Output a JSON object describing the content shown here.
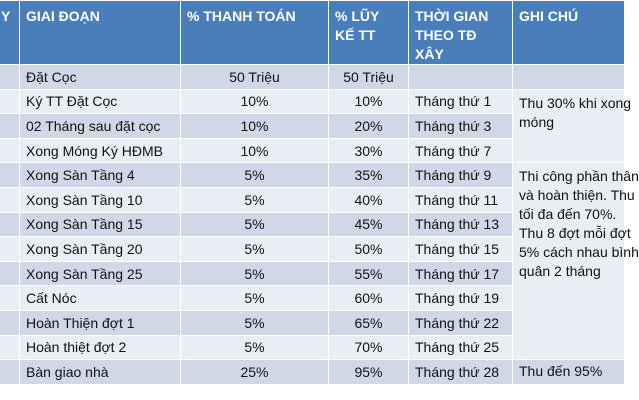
{
  "table": {
    "headers": [
      {
        "text": "Y",
        "name": "header-col-first"
      },
      {
        "text": "GIAI ĐOẠN",
        "name": "header-giai-doan"
      },
      {
        "text": "% THANH TOÁN",
        "name": "header-thanh-toan"
      },
      {
        "text": "% LŨY KẾ TT",
        "name": "header-luy-ke"
      },
      {
        "text": "THỜI GIAN THEO TĐ XÂY",
        "name": "header-thoi-gian"
      },
      {
        "text": "GHI CHÚ",
        "name": "header-ghi-chu"
      }
    ],
    "rows": [
      {
        "stage": "Đặt Cọc",
        "payment": "50 Triệu",
        "cumulative": "50 Triệu",
        "time": ""
      },
      {
        "stage": "Ký TT Đặt Cọc",
        "payment": "10%",
        "cumulative": "10%",
        "time": "Tháng thứ 1"
      },
      {
        "stage": "02 Tháng sau đặt cọc",
        "payment": "10%",
        "cumulative": "20%",
        "time": "Tháng thứ 3"
      },
      {
        "stage": "Xong Móng Ký HĐMB",
        "payment": "10%",
        "cumulative": "30%",
        "time": "Tháng thứ 7"
      },
      {
        "stage": "Xong Sàn Tầng 4",
        "payment": "5%",
        "cumulative": "35%",
        "time": "Tháng thứ 9"
      },
      {
        "stage": "Xong Sàn Tầng 10",
        "payment": "5%",
        "cumulative": "40%",
        "time": "Tháng thứ 11"
      },
      {
        "stage": "Xong Sàn Tầng 15",
        "payment": "5%",
        "cumulative": "45%",
        "time": "Tháng thứ 13"
      },
      {
        "stage": "Xong Sàn Tầng 20",
        "payment": "5%",
        "cumulative": "50%",
        "time": "Tháng thứ 15"
      },
      {
        "stage": "Xong Sàn Tầng 25",
        "payment": "5%",
        "cumulative": "55%",
        "time": "Tháng thứ 17"
      },
      {
        "stage": "Cất Nóc",
        "payment": "5%",
        "cumulative": "60%",
        "time": "Tháng thứ 19"
      },
      {
        "stage": "Hoàn Thiện đợt 1",
        "payment": "5%",
        "cumulative": "65%",
        "time": "Tháng thứ 22"
      },
      {
        "stage": "Hoàn thiệt đợt 2",
        "payment": "5%",
        "cumulative": "70%",
        "time": "Tháng thứ 25"
      },
      {
        "stage": "Bàn giao nhà",
        "payment": "25%",
        "cumulative": "95%",
        "time": "Tháng thứ 28"
      }
    ],
    "notes": {
      "note1": "Thu 30% khi xong móng",
      "note2": "Thi công phần thân và hoàn thiện. Thu tối đa đến 70%. Thu 8 đợt mỗi đợt 5% cách nhau bình quân 2 tháng",
      "note3": "Thu đến 95%"
    }
  }
}
